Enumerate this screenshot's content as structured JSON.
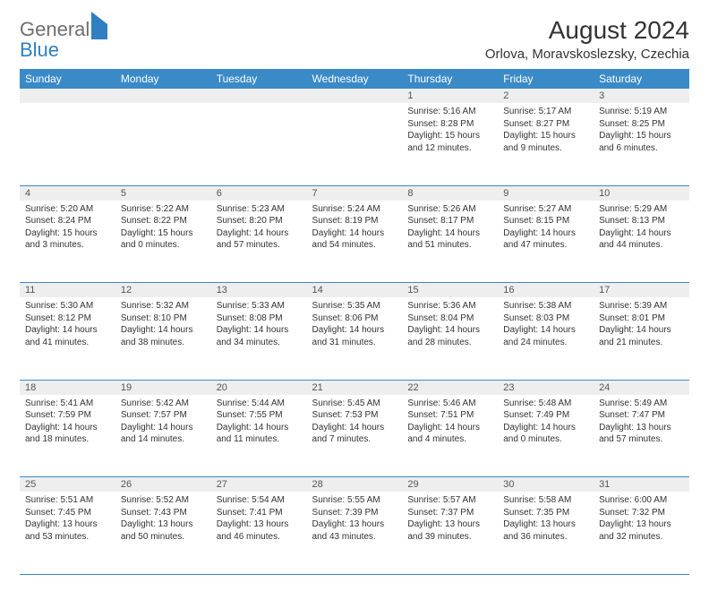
{
  "logo": {
    "text1": "General",
    "text2": "Blue"
  },
  "title": "August 2024",
  "location": "Orlova, Moravskoslezsky, Czechia",
  "weekdays": [
    "Sunday",
    "Monday",
    "Tuesday",
    "Wednesday",
    "Thursday",
    "Friday",
    "Saturday"
  ],
  "colors": {
    "header_bg": "#3a8ac8",
    "header_text": "#ffffff",
    "daynum_bg": "#eeeeee",
    "border": "#3a8ac8",
    "text": "#333333",
    "logo_gray": "#6e6e6e",
    "logo_blue": "#2f7fc2"
  },
  "cells": [
    [
      {
        "day": "",
        "lines": []
      },
      {
        "day": "",
        "lines": []
      },
      {
        "day": "",
        "lines": []
      },
      {
        "day": "",
        "lines": []
      },
      {
        "day": "1",
        "lines": [
          "Sunrise: 5:16 AM",
          "Sunset: 8:28 PM",
          "Daylight: 15 hours and 12 minutes."
        ]
      },
      {
        "day": "2",
        "lines": [
          "Sunrise: 5:17 AM",
          "Sunset: 8:27 PM",
          "Daylight: 15 hours and 9 minutes."
        ]
      },
      {
        "day": "3",
        "lines": [
          "Sunrise: 5:19 AM",
          "Sunset: 8:25 PM",
          "Daylight: 15 hours and 6 minutes."
        ]
      }
    ],
    [
      {
        "day": "4",
        "lines": [
          "Sunrise: 5:20 AM",
          "Sunset: 8:24 PM",
          "Daylight: 15 hours and 3 minutes."
        ]
      },
      {
        "day": "5",
        "lines": [
          "Sunrise: 5:22 AM",
          "Sunset: 8:22 PM",
          "Daylight: 15 hours and 0 minutes."
        ]
      },
      {
        "day": "6",
        "lines": [
          "Sunrise: 5:23 AM",
          "Sunset: 8:20 PM",
          "Daylight: 14 hours and 57 minutes."
        ]
      },
      {
        "day": "7",
        "lines": [
          "Sunrise: 5:24 AM",
          "Sunset: 8:19 PM",
          "Daylight: 14 hours and 54 minutes."
        ]
      },
      {
        "day": "8",
        "lines": [
          "Sunrise: 5:26 AM",
          "Sunset: 8:17 PM",
          "Daylight: 14 hours and 51 minutes."
        ]
      },
      {
        "day": "9",
        "lines": [
          "Sunrise: 5:27 AM",
          "Sunset: 8:15 PM",
          "Daylight: 14 hours and 47 minutes."
        ]
      },
      {
        "day": "10",
        "lines": [
          "Sunrise: 5:29 AM",
          "Sunset: 8:13 PM",
          "Daylight: 14 hours and 44 minutes."
        ]
      }
    ],
    [
      {
        "day": "11",
        "lines": [
          "Sunrise: 5:30 AM",
          "Sunset: 8:12 PM",
          "Daylight: 14 hours and 41 minutes."
        ]
      },
      {
        "day": "12",
        "lines": [
          "Sunrise: 5:32 AM",
          "Sunset: 8:10 PM",
          "Daylight: 14 hours and 38 minutes."
        ]
      },
      {
        "day": "13",
        "lines": [
          "Sunrise: 5:33 AM",
          "Sunset: 8:08 PM",
          "Daylight: 14 hours and 34 minutes."
        ]
      },
      {
        "day": "14",
        "lines": [
          "Sunrise: 5:35 AM",
          "Sunset: 8:06 PM",
          "Daylight: 14 hours and 31 minutes."
        ]
      },
      {
        "day": "15",
        "lines": [
          "Sunrise: 5:36 AM",
          "Sunset: 8:04 PM",
          "Daylight: 14 hours and 28 minutes."
        ]
      },
      {
        "day": "16",
        "lines": [
          "Sunrise: 5:38 AM",
          "Sunset: 8:03 PM",
          "Daylight: 14 hours and 24 minutes."
        ]
      },
      {
        "day": "17",
        "lines": [
          "Sunrise: 5:39 AM",
          "Sunset: 8:01 PM",
          "Daylight: 14 hours and 21 minutes."
        ]
      }
    ],
    [
      {
        "day": "18",
        "lines": [
          "Sunrise: 5:41 AM",
          "Sunset: 7:59 PM",
          "Daylight: 14 hours and 18 minutes."
        ]
      },
      {
        "day": "19",
        "lines": [
          "Sunrise: 5:42 AM",
          "Sunset: 7:57 PM",
          "Daylight: 14 hours and 14 minutes."
        ]
      },
      {
        "day": "20",
        "lines": [
          "Sunrise: 5:44 AM",
          "Sunset: 7:55 PM",
          "Daylight: 14 hours and 11 minutes."
        ]
      },
      {
        "day": "21",
        "lines": [
          "Sunrise: 5:45 AM",
          "Sunset: 7:53 PM",
          "Daylight: 14 hours and 7 minutes."
        ]
      },
      {
        "day": "22",
        "lines": [
          "Sunrise: 5:46 AM",
          "Sunset: 7:51 PM",
          "Daylight: 14 hours and 4 minutes."
        ]
      },
      {
        "day": "23",
        "lines": [
          "Sunrise: 5:48 AM",
          "Sunset: 7:49 PM",
          "Daylight: 14 hours and 0 minutes."
        ]
      },
      {
        "day": "24",
        "lines": [
          "Sunrise: 5:49 AM",
          "Sunset: 7:47 PM",
          "Daylight: 13 hours and 57 minutes."
        ]
      }
    ],
    [
      {
        "day": "25",
        "lines": [
          "Sunrise: 5:51 AM",
          "Sunset: 7:45 PM",
          "Daylight: 13 hours and 53 minutes."
        ]
      },
      {
        "day": "26",
        "lines": [
          "Sunrise: 5:52 AM",
          "Sunset: 7:43 PM",
          "Daylight: 13 hours and 50 minutes."
        ]
      },
      {
        "day": "27",
        "lines": [
          "Sunrise: 5:54 AM",
          "Sunset: 7:41 PM",
          "Daylight: 13 hours and 46 minutes."
        ]
      },
      {
        "day": "28",
        "lines": [
          "Sunrise: 5:55 AM",
          "Sunset: 7:39 PM",
          "Daylight: 13 hours and 43 minutes."
        ]
      },
      {
        "day": "29",
        "lines": [
          "Sunrise: 5:57 AM",
          "Sunset: 7:37 PM",
          "Daylight: 13 hours and 39 minutes."
        ]
      },
      {
        "day": "30",
        "lines": [
          "Sunrise: 5:58 AM",
          "Sunset: 7:35 PM",
          "Daylight: 13 hours and 36 minutes."
        ]
      },
      {
        "day": "31",
        "lines": [
          "Sunrise: 6:00 AM",
          "Sunset: 7:32 PM",
          "Daylight: 13 hours and 32 minutes."
        ]
      }
    ]
  ]
}
